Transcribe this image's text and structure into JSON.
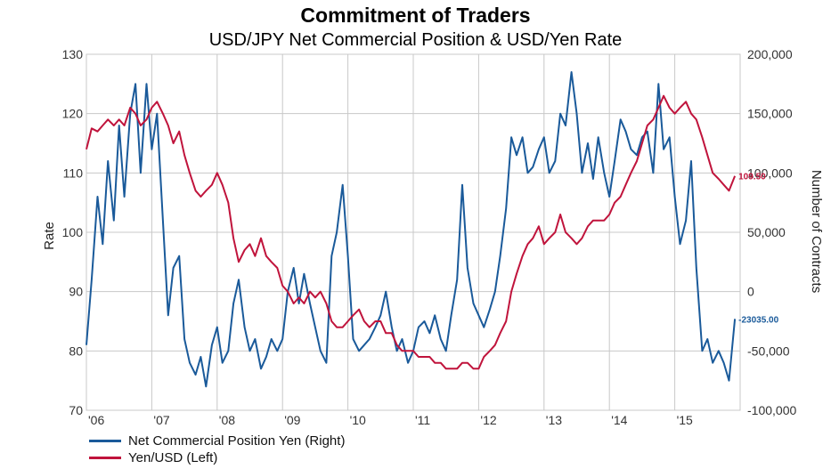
{
  "chart_data": {
    "type": "line",
    "title": "Commitment of Traders",
    "subtitle": "USD/JPY Net Commercial Position & USD/Yen Rate",
    "ylabel_left": "Rate",
    "ylabel_right": "Number of Contracts",
    "ylim_left": [
      70,
      130
    ],
    "ylim_right": [
      -100000,
      200000
    ],
    "yticks_left": [
      "130",
      "120",
      "110",
      "100",
      "90",
      "80",
      "70"
    ],
    "yticks_right": [
      "200,000",
      "150,000",
      "100,000",
      "50,000",
      "0",
      "-50,000",
      "-100,000"
    ],
    "xlim": [
      2006.0,
      2016.0
    ],
    "xticks": [
      {
        "year": 2006,
        "label": "'06"
      },
      {
        "year": 2007,
        "label": "'07"
      },
      {
        "year": 2008,
        "label": "'08"
      },
      {
        "year": 2009,
        "label": "'09"
      },
      {
        "year": 2010,
        "label": "'10"
      },
      {
        "year": 2011,
        "label": "'11"
      },
      {
        "year": 2012,
        "label": "'12"
      },
      {
        "year": 2013,
        "label": "'13"
      },
      {
        "year": 2014,
        "label": "'14"
      },
      {
        "year": 2015,
        "label": "'15"
      }
    ],
    "grid": true,
    "legend_position": "bottom-left",
    "series": [
      {
        "name": "Net Commercial Position Yen (Right)",
        "axis": "right",
        "color": "#1a5a9a",
        "end_label": "-23035.00",
        "x": [
          2006.0,
          2006.08,
          2006.17,
          2006.25,
          2006.33,
          2006.42,
          2006.5,
          2006.58,
          2006.67,
          2006.75,
          2006.83,
          2006.92,
          2007.0,
          2007.08,
          2007.17,
          2007.25,
          2007.33,
          2007.42,
          2007.5,
          2007.58,
          2007.67,
          2007.75,
          2007.83,
          2007.92,
          2008.0,
          2008.08,
          2008.17,
          2008.25,
          2008.33,
          2008.42,
          2008.5,
          2008.58,
          2008.67,
          2008.75,
          2008.83,
          2008.92,
          2009.0,
          2009.08,
          2009.17,
          2009.25,
          2009.33,
          2009.42,
          2009.5,
          2009.58,
          2009.67,
          2009.75,
          2009.83,
          2009.92,
          2010.0,
          2010.08,
          2010.17,
          2010.25,
          2010.33,
          2010.42,
          2010.5,
          2010.58,
          2010.67,
          2010.75,
          2010.83,
          2010.92,
          2011.0,
          2011.08,
          2011.17,
          2011.25,
          2011.33,
          2011.42,
          2011.5,
          2011.58,
          2011.67,
          2011.75,
          2011.83,
          2011.92,
          2012.0,
          2012.08,
          2012.17,
          2012.25,
          2012.33,
          2012.42,
          2012.5,
          2012.58,
          2012.67,
          2012.75,
          2012.83,
          2012.92,
          2013.0,
          2013.08,
          2013.17,
          2013.25,
          2013.33,
          2013.42,
          2013.5,
          2013.58,
          2013.67,
          2013.75,
          2013.83,
          2013.92,
          2014.0,
          2014.08,
          2014.17,
          2014.25,
          2014.33,
          2014.42,
          2014.5,
          2014.58,
          2014.67,
          2014.75,
          2014.83,
          2014.92,
          2015.0,
          2015.08,
          2015.17,
          2015.25,
          2015.33,
          2015.42,
          2015.5,
          2015.58,
          2015.67,
          2015.75,
          2015.83,
          2015.92
        ],
        "values": [
          -45000,
          10000,
          80000,
          40000,
          110000,
          60000,
          140000,
          80000,
          150000,
          175000,
          100000,
          175000,
          120000,
          150000,
          60000,
          -20000,
          20000,
          30000,
          -40000,
          -60000,
          -70000,
          -55000,
          -80000,
          -45000,
          -30000,
          -60000,
          -50000,
          -10000,
          10000,
          -30000,
          -50000,
          -40000,
          -65000,
          -55000,
          -40000,
          -50000,
          -40000,
          0,
          20000,
          -10000,
          15000,
          -10000,
          -30000,
          -50000,
          -60000,
          30000,
          50000,
          90000,
          30000,
          -40000,
          -50000,
          -45000,
          -40000,
          -30000,
          -20000,
          0,
          -30000,
          -50000,
          -40000,
          -60000,
          -50000,
          -30000,
          -25000,
          -35000,
          -20000,
          -40000,
          -50000,
          -20000,
          10000,
          90000,
          20000,
          -10000,
          -20000,
          -30000,
          -15000,
          0,
          30000,
          70000,
          130000,
          115000,
          130000,
          100000,
          105000,
          120000,
          130000,
          100000,
          110000,
          150000,
          140000,
          185000,
          150000,
          100000,
          125000,
          95000,
          130000,
          100000,
          80000,
          110000,
          145000,
          135000,
          120000,
          115000,
          130000,
          135000,
          100000,
          175000,
          120000,
          130000,
          80000,
          40000,
          60000,
          110000,
          20000,
          -50000,
          -40000,
          -60000,
          -50000,
          -60000,
          -75000,
          -23035
        ]
      },
      {
        "name": "Yen/USD (Left)",
        "axis": "left",
        "color": "#c0143c",
        "end_label": "109.50",
        "x": [
          2006.0,
          2006.08,
          2006.17,
          2006.25,
          2006.33,
          2006.42,
          2006.5,
          2006.58,
          2006.67,
          2006.75,
          2006.83,
          2006.92,
          2007.0,
          2007.08,
          2007.17,
          2007.25,
          2007.33,
          2007.42,
          2007.5,
          2007.58,
          2007.67,
          2007.75,
          2007.83,
          2007.92,
          2008.0,
          2008.08,
          2008.17,
          2008.25,
          2008.33,
          2008.42,
          2008.5,
          2008.58,
          2008.67,
          2008.75,
          2008.83,
          2008.92,
          2009.0,
          2009.08,
          2009.17,
          2009.25,
          2009.33,
          2009.42,
          2009.5,
          2009.58,
          2009.67,
          2009.75,
          2009.83,
          2009.92,
          2010.0,
          2010.08,
          2010.17,
          2010.25,
          2010.33,
          2010.42,
          2010.5,
          2010.58,
          2010.67,
          2010.75,
          2010.83,
          2010.92,
          2011.0,
          2011.08,
          2011.17,
          2011.25,
          2011.33,
          2011.42,
          2011.5,
          2011.58,
          2011.67,
          2011.75,
          2011.83,
          2011.92,
          2012.0,
          2012.08,
          2012.17,
          2012.25,
          2012.33,
          2012.42,
          2012.5,
          2012.58,
          2012.67,
          2012.75,
          2012.83,
          2012.92,
          2013.0,
          2013.08,
          2013.17,
          2013.25,
          2013.33,
          2013.42,
          2013.5,
          2013.58,
          2013.67,
          2013.75,
          2013.83,
          2013.92,
          2014.0,
          2014.08,
          2014.17,
          2014.25,
          2014.33,
          2014.42,
          2014.5,
          2014.58,
          2014.67,
          2014.75,
          2014.83,
          2014.92,
          2015.0,
          2015.08,
          2015.17,
          2015.25,
          2015.33,
          2015.42,
          2015.5,
          2015.58,
          2015.67,
          2015.75,
          2015.83,
          2015.92
        ],
        "values": [
          114,
          117.5,
          117,
          118,
          119,
          118,
          119,
          118,
          121,
          120,
          118,
          119,
          121,
          122,
          120,
          118,
          115,
          117,
          113,
          110,
          107,
          106,
          107,
          108,
          110,
          108,
          105,
          99,
          95,
          97,
          98,
          96,
          99,
          96,
          95,
          94,
          91,
          90,
          88,
          89,
          88,
          90,
          89,
          90,
          88,
          85,
          84,
          84,
          85,
          86,
          87,
          85,
          84,
          85,
          85,
          83,
          83,
          81,
          80,
          80,
          80,
          79,
          79,
          79,
          78,
          78,
          77,
          77,
          77,
          78,
          78,
          77,
          77,
          79,
          80,
          81,
          83,
          85,
          90,
          93,
          96,
          98,
          99,
          101,
          98,
          99,
          100,
          103,
          100,
          99,
          98,
          99,
          101,
          102,
          102,
          102,
          103,
          105,
          106,
          108,
          110,
          112,
          115,
          118,
          119,
          121,
          123,
          121,
          120,
          121,
          122,
          120,
          119,
          116,
          113,
          110,
          109,
          108,
          107,
          109.5
        ]
      }
    ]
  }
}
